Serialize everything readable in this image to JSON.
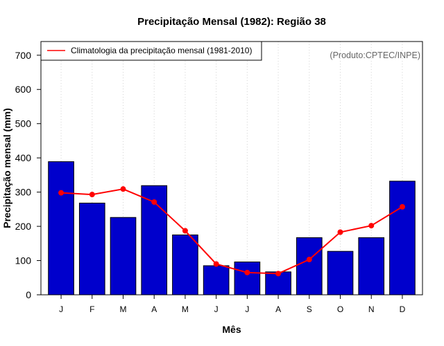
{
  "chart_data": {
    "type": "bar",
    "title": "Precipitação Mensal (1982): Região 38",
    "xlabel": "Mês",
    "ylabel": "Precipitação mensal (mm)",
    "categories": [
      "J",
      "F",
      "M",
      "A",
      "M",
      "J",
      "J",
      "A",
      "S",
      "O",
      "N",
      "D"
    ],
    "ylim": [
      0,
      740
    ],
    "yticks": [
      0,
      100,
      200,
      300,
      400,
      500,
      600,
      700
    ],
    "grid": "vertical dotted",
    "series": [
      {
        "name": "Precipitação mensal (1982)",
        "type": "bar",
        "values": [
          389,
          268,
          226,
          319,
          175,
          85,
          96,
          67,
          167,
          127,
          167,
          332
        ]
      },
      {
        "name": "Climatologia da precipitação mensal (1981-2010)",
        "type": "line",
        "values": [
          298,
          293,
          309,
          271,
          187,
          90,
          65,
          62,
          103,
          183,
          202,
          257
        ]
      }
    ],
    "legend": {
      "label": "Climatologia da precipitação mensal (1981-2010)",
      "position": "top-left"
    },
    "credit": "(Produto:CPTEC/INPE)",
    "colors": {
      "bar_fill": "#0000CC",
      "bar_stroke": "#000000",
      "line": "#FF0000",
      "grid": "#D3D3D3",
      "frame": "#000000",
      "credit": "#666666"
    }
  }
}
